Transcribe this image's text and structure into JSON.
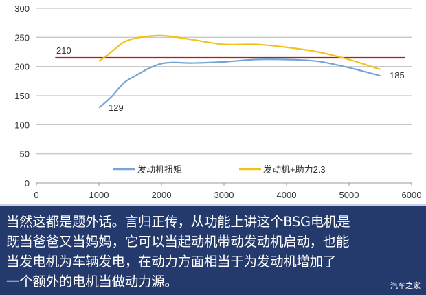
{
  "chart_data": {
    "type": "line",
    "title": "",
    "xlabel": "",
    "ylabel": "",
    "xlim": [
      0,
      6000
    ],
    "ylim": [
      0,
      300
    ],
    "xticks": [
      "0",
      "1000",
      "2000",
      "3000",
      "4000",
      "5000",
      "6000"
    ],
    "yticks": [
      "0",
      "50",
      "100",
      "150",
      "200",
      "250",
      "300"
    ],
    "grid": "horizontal",
    "legend": "bottom-center",
    "series": [
      {
        "name": "发动机扭矩",
        "color": "#74a5d6",
        "x": [
          1000,
          1200,
          1400,
          1600,
          1800,
          2000,
          2200,
          2500,
          3000,
          3500,
          4000,
          4500,
          5000,
          5500
        ],
        "y": [
          129,
          148,
          172,
          185,
          197,
          205,
          207,
          206,
          208,
          212,
          212,
          209,
          198,
          184
        ]
      },
      {
        "name": "发动机+助力2.3",
        "color": "#f2c21b",
        "x": [
          1000,
          1200,
          1400,
          1600,
          1800,
          2000,
          2200,
          2500,
          3000,
          3500,
          4000,
          4500,
          5000,
          5500
        ],
        "y": [
          209,
          225,
          242,
          249,
          252,
          253,
          251,
          246,
          238,
          238,
          233,
          225,
          212,
          195
        ]
      }
    ],
    "reference_line": {
      "y": 215,
      "x_range": [
        300,
        5900
      ],
      "color": "#cc1111"
    },
    "annotations": [
      "210",
      "129",
      "185"
    ]
  },
  "caption": {
    "lines": [
      "当然这都是题外话。言归正传，从功能上讲这个BSG电机是",
      "既当爸爸又当妈妈，它可以当起动机带动发动机启动，也能",
      "当发电机为车辆发电，在动力方面相当于为发动机增加了",
      "一个额外的电机当做动力源。"
    ],
    "watermark": "汽车之家"
  }
}
